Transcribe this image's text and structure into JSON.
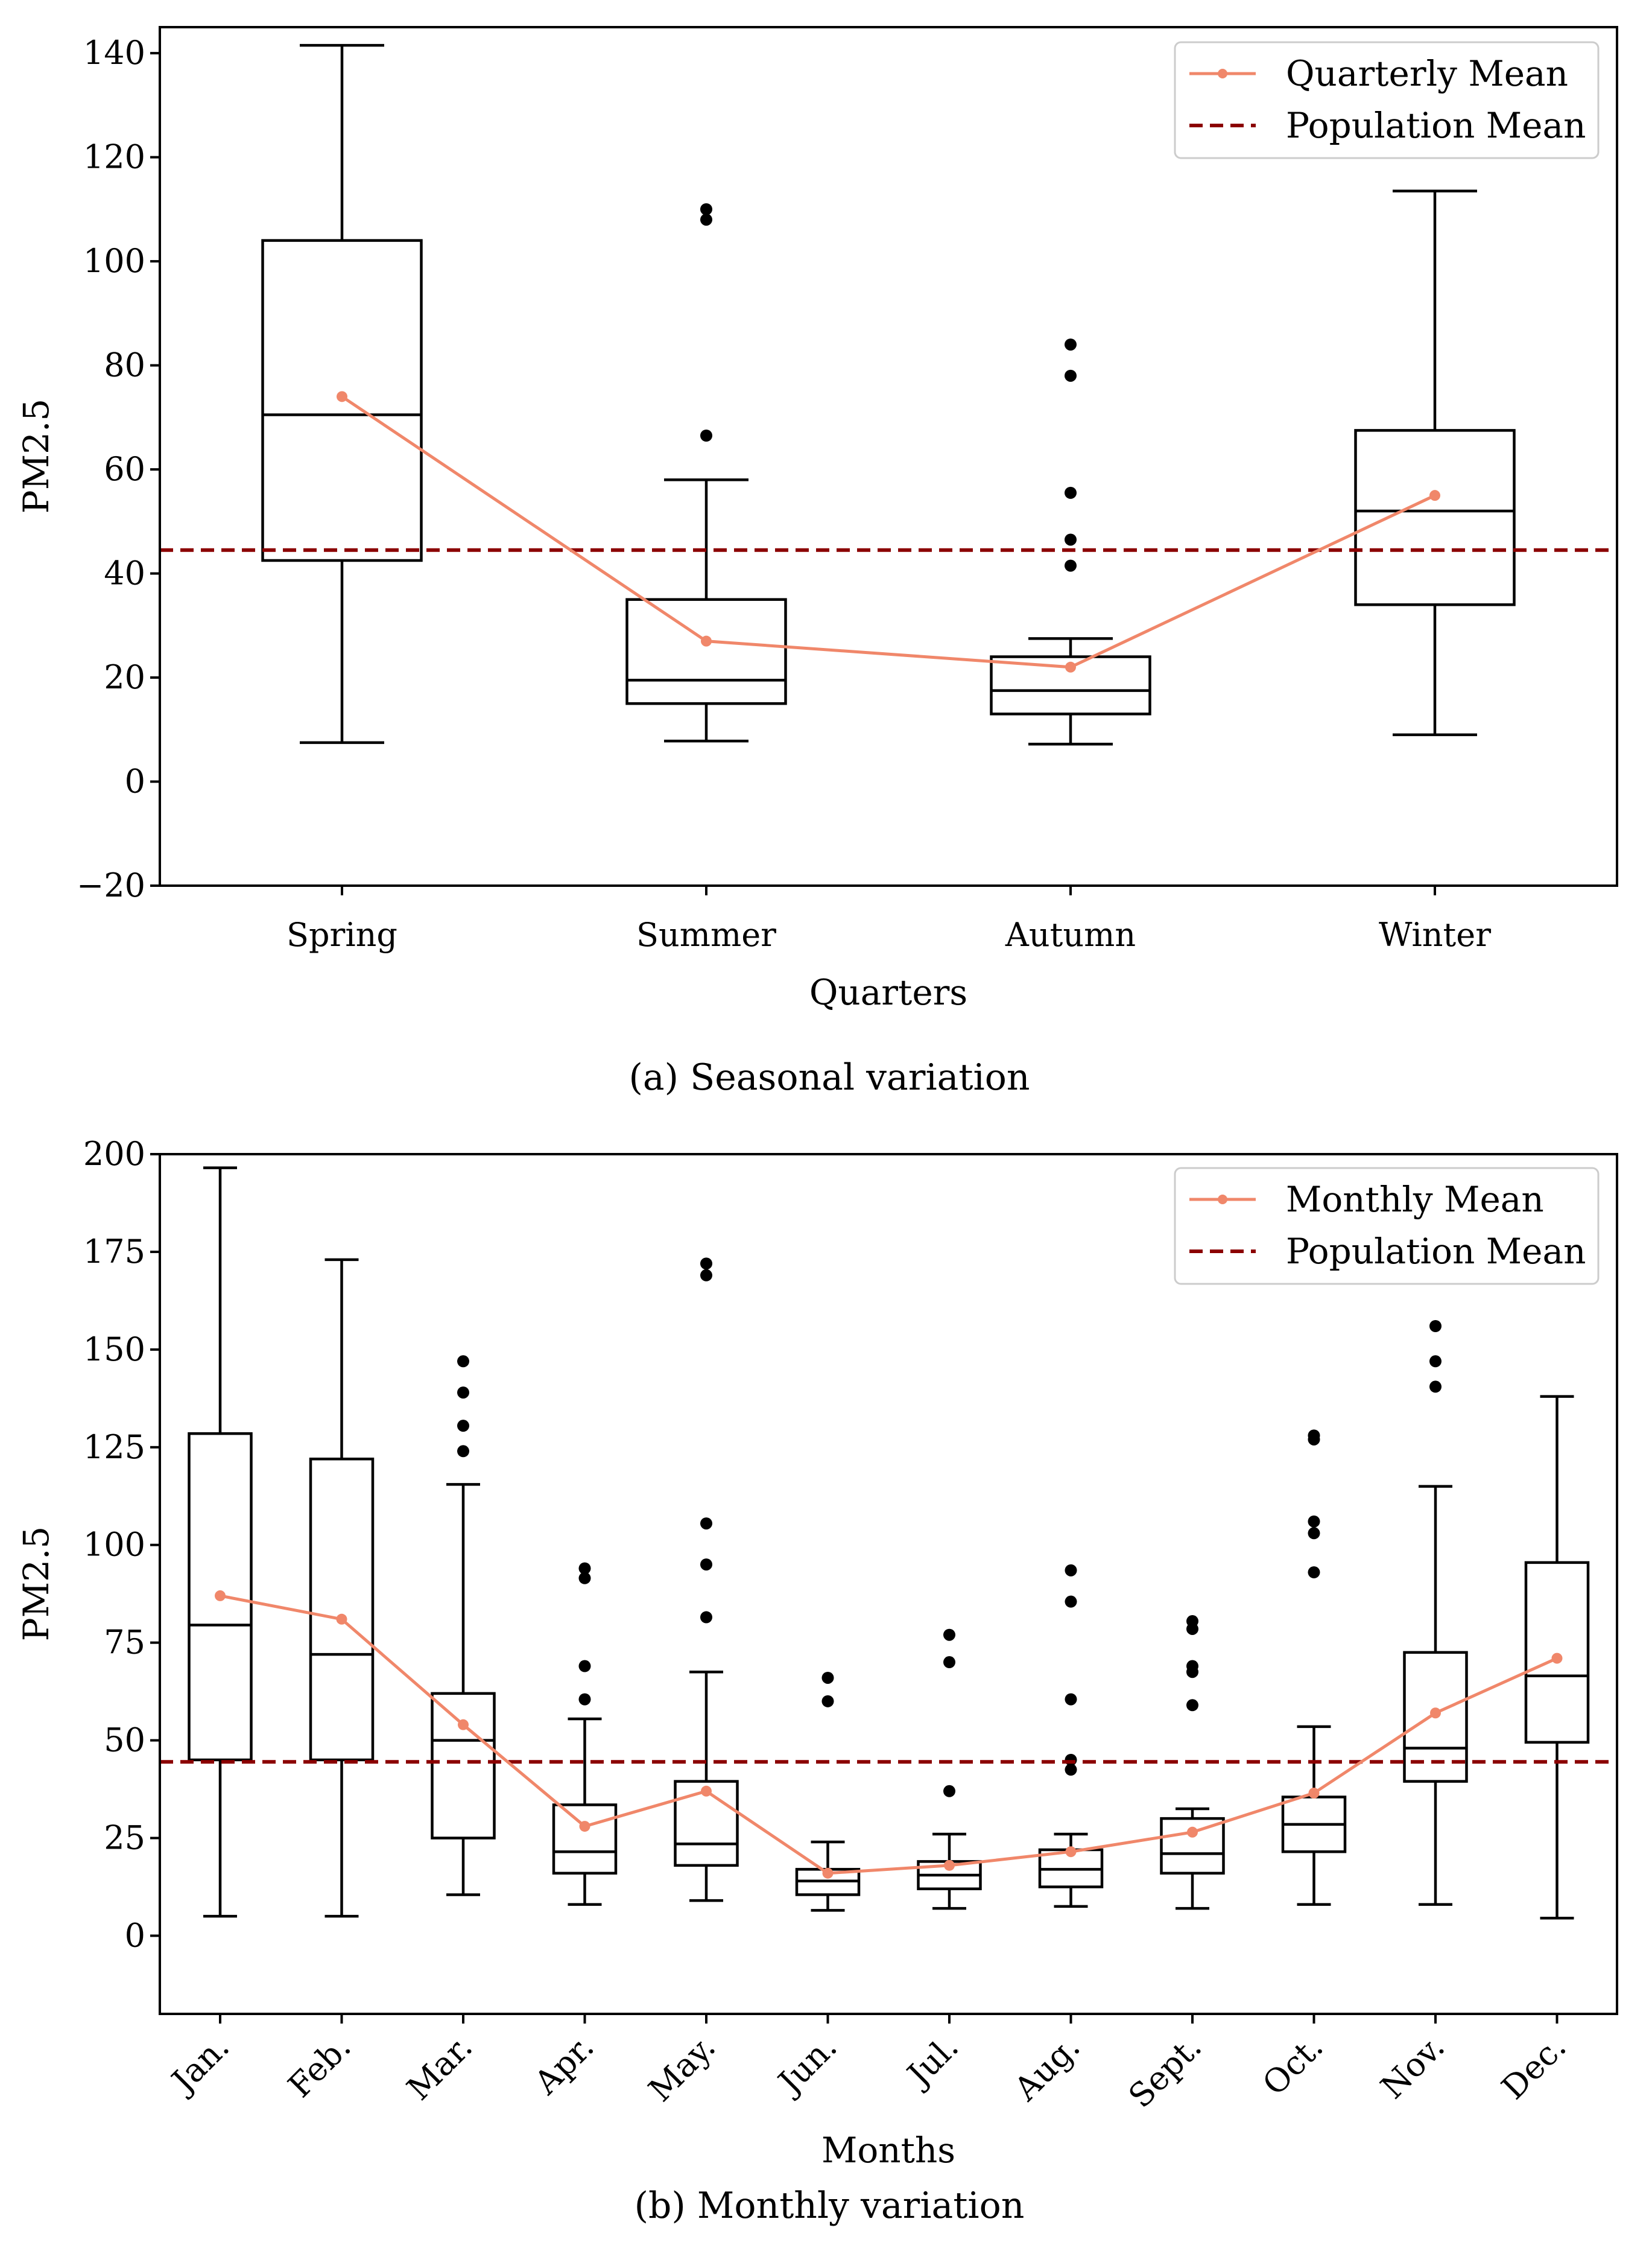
{
  "colors": {
    "mean_line": "#f0876a",
    "population_mean": "#8b0000",
    "box": "#000000",
    "outlier": "#000000"
  },
  "chart_data": [
    {
      "type": "box",
      "caption": "(a) Seasonal variation",
      "xlabel": "Quarters",
      "ylabel": "PM2.5",
      "ylim": [
        -20,
        145
      ],
      "yticks": [
        -20,
        0,
        20,
        40,
        60,
        80,
        100,
        120,
        140
      ],
      "ytick_labels": [
        "−20",
        "0",
        "20",
        "40",
        "60",
        "80",
        "100",
        "120",
        "140"
      ],
      "categories": [
        "Spring",
        "Summer",
        "Autumn",
        "Winter"
      ],
      "boxes": [
        {
          "whisker_low": 7.5,
          "q1": 42.5,
          "median": 70.5,
          "q3": 104,
          "whisker_high": 141.5,
          "outliers": []
        },
        {
          "whisker_low": 7.8,
          "q1": 15,
          "median": 19.5,
          "q3": 35,
          "whisker_high": 58,
          "outliers": [
            66.5,
            108,
            110
          ]
        },
        {
          "whisker_low": 7.2,
          "q1": 13,
          "median": 17.5,
          "q3": 24,
          "whisker_high": 27.5,
          "outliers": [
            41.5,
            46.5,
            55.5,
            78,
            84
          ]
        },
        {
          "whisker_low": 9,
          "q1": 34,
          "median": 52,
          "q3": 67.5,
          "whisker_high": 113.5,
          "outliers": []
        }
      ],
      "mean_series": {
        "name": "Quarterly Mean",
        "values": [
          74,
          27,
          22,
          55
        ]
      },
      "population_mean": {
        "name": "Population Mean",
        "value": 44.5
      },
      "legend": {
        "position": "upper right",
        "entries": [
          "Quarterly Mean",
          "Population Mean"
        ]
      }
    },
    {
      "type": "box",
      "caption": "(b) Monthly variation",
      "xlabel": "Months",
      "ylabel": "PM2.5",
      "ylim": [
        -20,
        200
      ],
      "yticks": [
        0,
        25,
        50,
        75,
        100,
        125,
        150,
        175,
        200
      ],
      "ytick_labels": [
        "0",
        "25",
        "50",
        "75",
        "100",
        "125",
        "150",
        "175",
        "200"
      ],
      "categories": [
        "Jan.",
        "Feb.",
        "Mar.",
        "Apr.",
        "May.",
        "Jun.",
        "Jul.",
        "Aug.",
        "Sept.",
        "Oct.",
        "Nov.",
        "Dec."
      ],
      "boxes": [
        {
          "whisker_low": 5,
          "q1": 45,
          "median": 79.5,
          "q3": 128.5,
          "whisker_high": 196.5,
          "outliers": []
        },
        {
          "whisker_low": 5,
          "q1": 45,
          "median": 72,
          "q3": 122,
          "whisker_high": 173,
          "outliers": []
        },
        {
          "whisker_low": 10.5,
          "q1": 25,
          "median": 50,
          "q3": 62,
          "whisker_high": 115.5,
          "outliers": [
            124,
            130.5,
            139,
            147
          ]
        },
        {
          "whisker_low": 8,
          "q1": 16,
          "median": 21.5,
          "q3": 33.5,
          "whisker_high": 55.5,
          "outliers": [
            60.5,
            69,
            91.5,
            94
          ]
        },
        {
          "whisker_low": 9,
          "q1": 18,
          "median": 23.5,
          "q3": 39.5,
          "whisker_high": 67.5,
          "outliers": [
            81.5,
            95,
            105.5,
            169,
            172
          ]
        },
        {
          "whisker_low": 6.5,
          "q1": 10.5,
          "median": 14,
          "q3": 17,
          "whisker_high": 24,
          "outliers": [
            60,
            66
          ]
        },
        {
          "whisker_low": 7,
          "q1": 12,
          "median": 15.5,
          "q3": 19,
          "whisker_high": 26,
          "outliers": [
            37,
            70,
            77
          ]
        },
        {
          "whisker_low": 7.5,
          "q1": 12.5,
          "median": 17,
          "q3": 22,
          "whisker_high": 26,
          "outliers": [
            42.5,
            45,
            60.5,
            85.5,
            93.5
          ]
        },
        {
          "whisker_low": 7,
          "q1": 16,
          "median": 21,
          "q3": 30,
          "whisker_high": 32.5,
          "outliers": [
            59,
            67.5,
            69,
            78.5,
            80.5
          ]
        },
        {
          "whisker_low": 8,
          "q1": 21.5,
          "median": 28.5,
          "q3": 35.5,
          "whisker_high": 53.5,
          "outliers": [
            93,
            103,
            106,
            127,
            128
          ]
        },
        {
          "whisker_low": 8,
          "q1": 39.5,
          "median": 48,
          "q3": 72.5,
          "whisker_high": 115,
          "outliers": [
            140.5,
            147,
            156
          ]
        },
        {
          "whisker_low": 4.5,
          "q1": 49.5,
          "median": 66.5,
          "q3": 95.5,
          "whisker_high": 138,
          "outliers": []
        }
      ],
      "mean_series": {
        "name": "Monthly Mean",
        "values": [
          87,
          81,
          54,
          28,
          37,
          16,
          18,
          21.5,
          26.5,
          36.5,
          57,
          71
        ]
      },
      "population_mean": {
        "name": "Population Mean",
        "value": 44.5
      },
      "legend": {
        "position": "upper right",
        "entries": [
          "Monthly Mean",
          "Population Mean"
        ]
      }
    }
  ]
}
